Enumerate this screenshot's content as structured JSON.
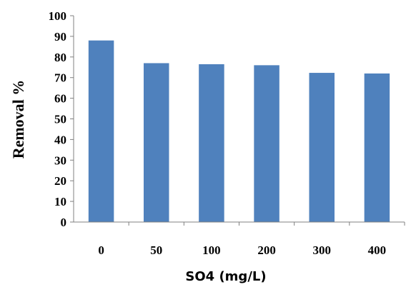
{
  "chart_data": {
    "type": "bar",
    "categories": [
      "0",
      "50",
      "100",
      "200",
      "300",
      "400"
    ],
    "values": [
      88,
      77,
      76.5,
      76,
      72.3,
      72
    ],
    "title": "",
    "xlabel": "SO4 (mg/L)",
    "ylabel": "Removal %",
    "ylim": [
      0,
      100
    ],
    "yticks": [
      "0",
      "10",
      "20",
      "30",
      "40",
      "50",
      "60",
      "70",
      "80",
      "90",
      "100"
    ],
    "grid": false,
    "legend": "none",
    "bar_color": "#4f81bd"
  }
}
